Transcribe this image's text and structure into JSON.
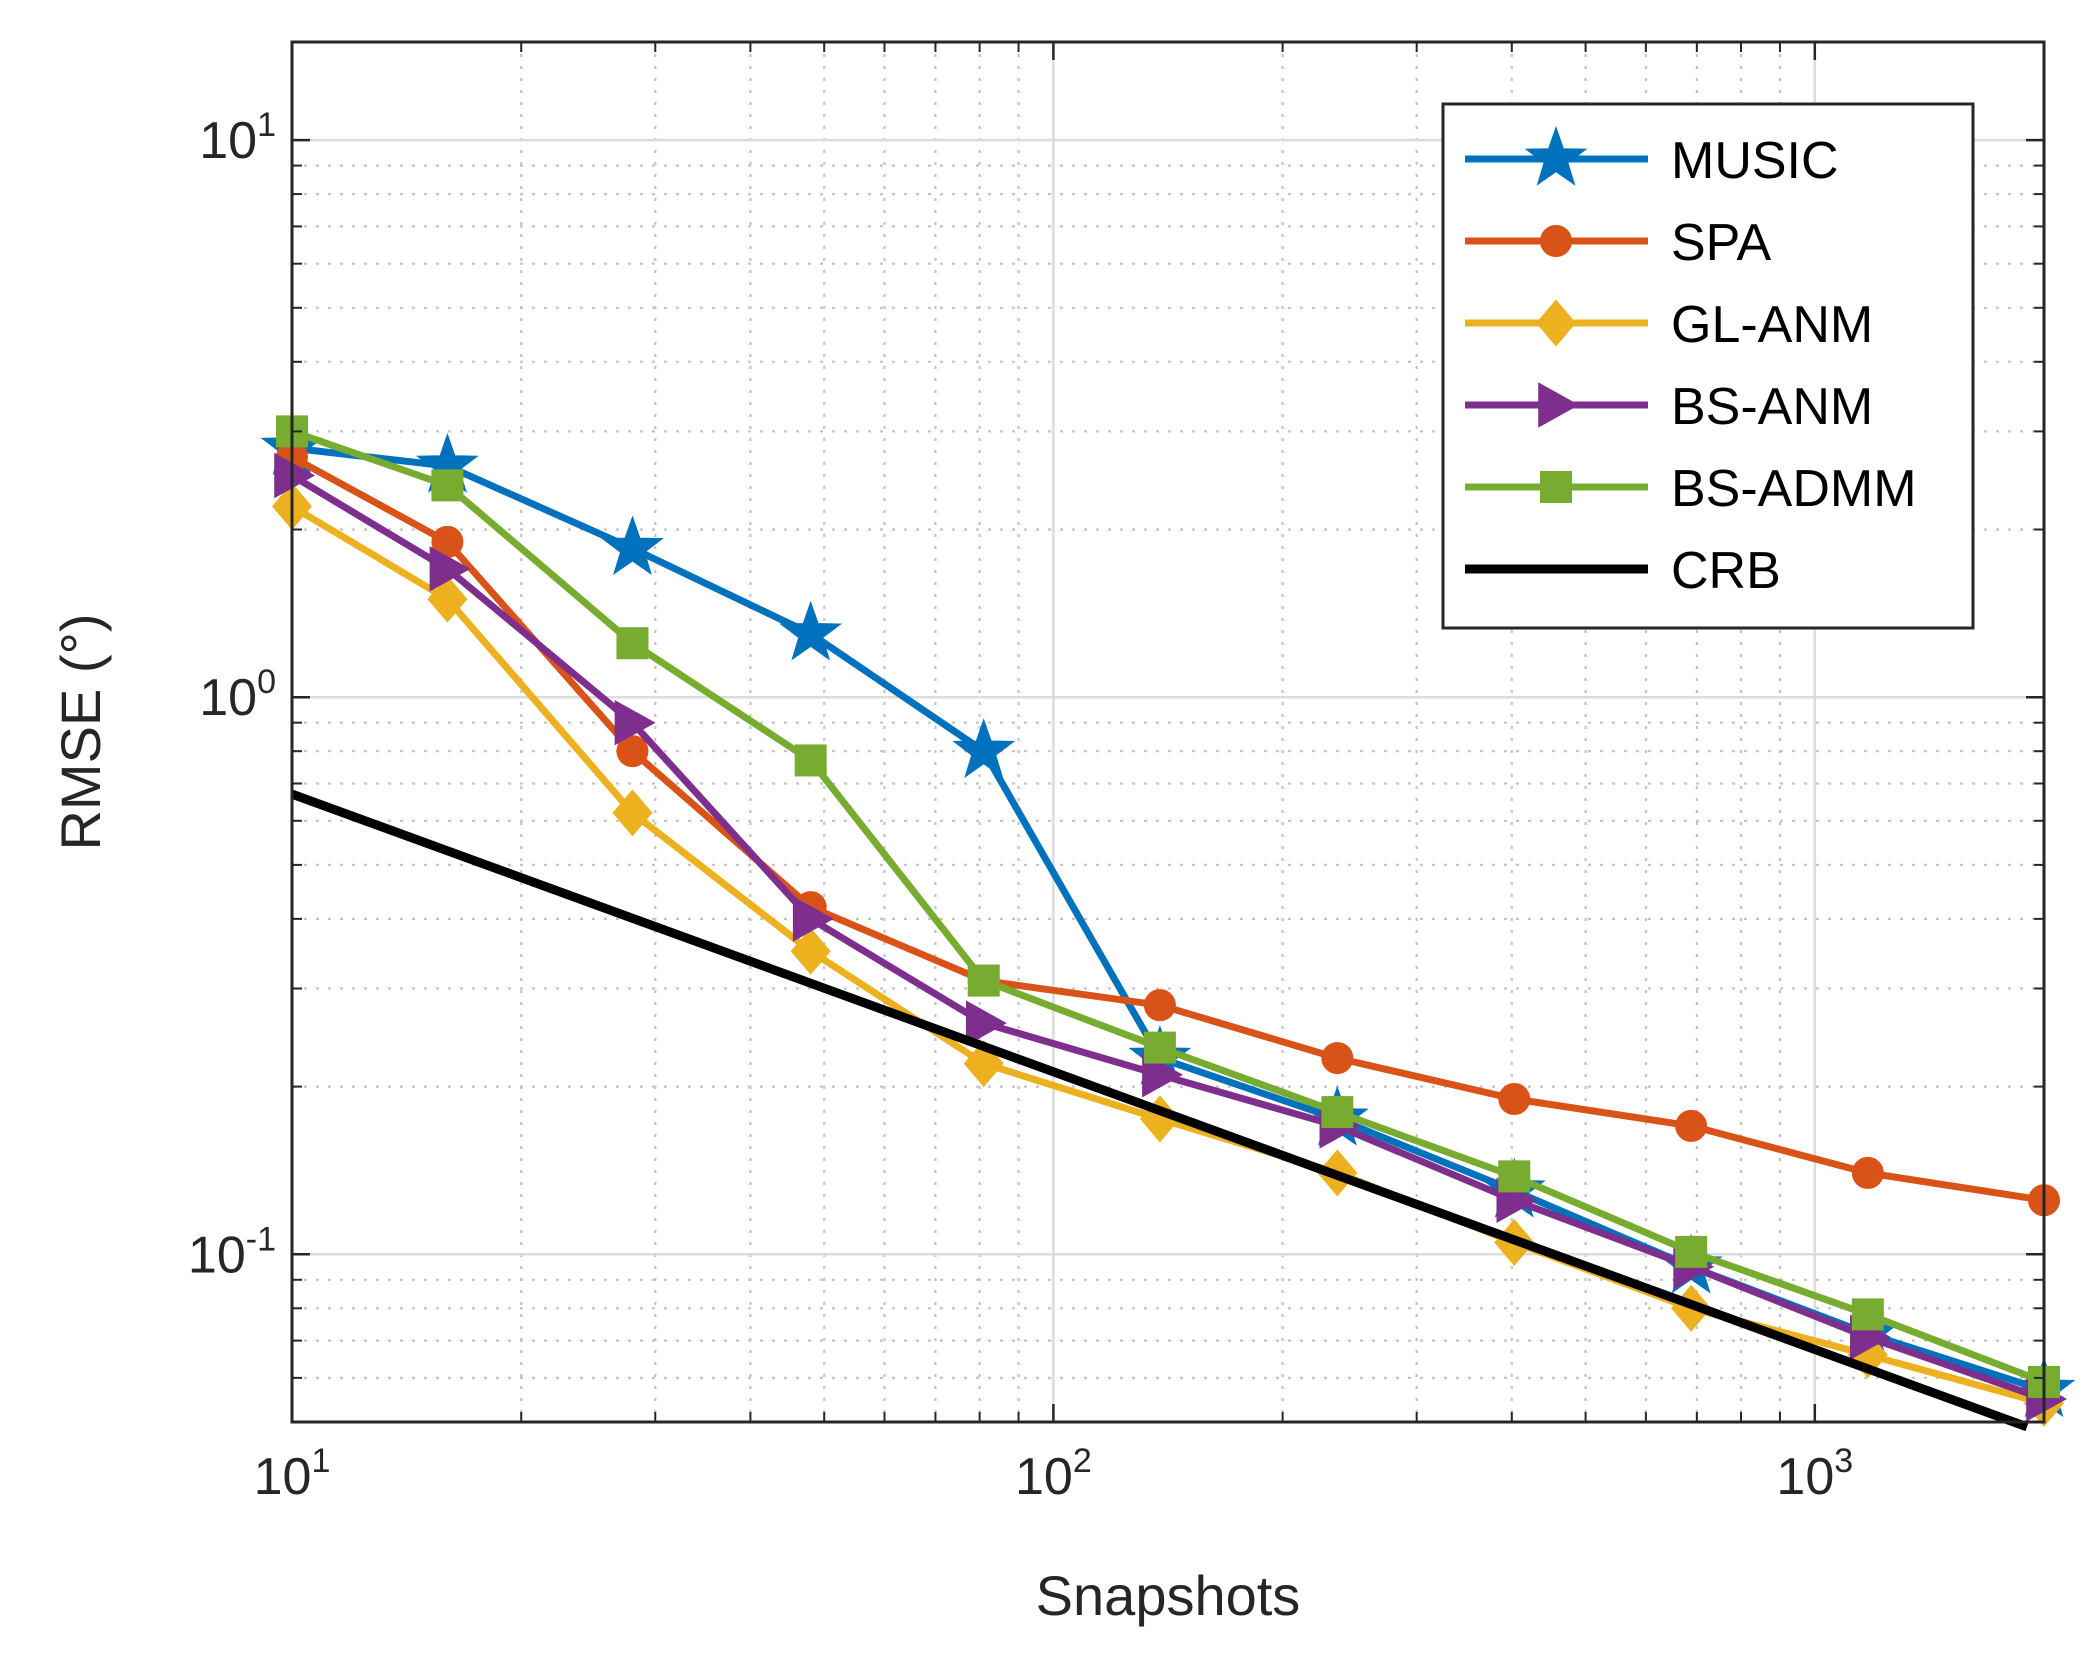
{
  "chart_data": {
    "type": "line",
    "x_scale": "log",
    "y_scale": "log",
    "xlabel": "Snapshots",
    "ylabel": "RMSE (°)",
    "xlim": [
      10,
      2000
    ],
    "ylim": [
      0.05,
      15
    ],
    "grid": true,
    "legend_position": "top-right",
    "x_ticks": [
      {
        "base": "10",
        "exp": "1"
      },
      {
        "base": "10",
        "exp": "2"
      },
      {
        "base": "10",
        "exp": "3"
      }
    ],
    "y_ticks": [
      {
        "base": "10",
        "exp": "-1"
      },
      {
        "base": "10",
        "exp": "0"
      },
      {
        "base": "10",
        "exp": "1"
      }
    ],
    "x": [
      10,
      16,
      28,
      48,
      81,
      138,
      236,
      403,
      688,
      1174,
      2000
    ],
    "series": [
      {
        "name": "MUSIC",
        "color": "#0072BD",
        "marker": "star",
        "values": [
          2.8,
          2.6,
          1.85,
          1.3,
          0.8,
          0.225,
          0.175,
          0.13,
          0.095,
          0.072,
          0.057
        ]
      },
      {
        "name": "SPA",
        "color": "#D95319",
        "marker": "circle",
        "values": [
          2.7,
          1.9,
          0.8,
          0.42,
          0.31,
          0.28,
          0.225,
          0.19,
          0.17,
          0.14,
          0.125
        ]
      },
      {
        "name": "GL-ANM",
        "color": "#EDB120",
        "marker": "diamond",
        "values": [
          2.2,
          1.5,
          0.62,
          0.35,
          0.22,
          0.175,
          0.14,
          0.105,
          0.08,
          0.066,
          0.054
        ]
      },
      {
        "name": "BS-ANM",
        "color": "#7E2F8E",
        "marker": "triangle-right",
        "values": [
          2.5,
          1.7,
          0.9,
          0.4,
          0.26,
          0.21,
          0.17,
          0.125,
          0.095,
          0.071,
          0.055
        ]
      },
      {
        "name": "BS-ADMM",
        "color": "#77AC30",
        "marker": "square",
        "values": [
          3.0,
          2.4,
          1.25,
          0.77,
          0.31,
          0.235,
          0.18,
          0.138,
          0.101,
          0.078,
          0.059
        ]
      },
      {
        "name": "CRB",
        "color": "#000000",
        "marker": "none",
        "x": [
          10,
          1900
        ],
        "values": [
          0.67,
          0.049
        ]
      }
    ]
  }
}
